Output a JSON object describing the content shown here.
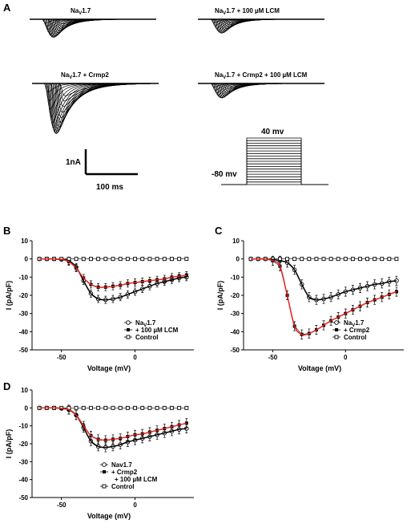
{
  "panel_A": {
    "letter": "A",
    "trace_titles": [
      {
        "id": "nav17",
        "base": "Na",
        "sub": "V",
        "rest": "1.7"
      },
      {
        "id": "nav17_lcm",
        "base": "Na",
        "sub": "V",
        "rest": "1.7 + 100 µM LCM"
      },
      {
        "id": "nav17_crmp2",
        "base": "Na",
        "sub": "V",
        "rest": "1.7 + Crmp2"
      },
      {
        "id": "nav17_crmp2_lcm",
        "base": "Na",
        "sub": "V",
        "rest": "1.7 + Crmp2 + 100 µM LCM"
      }
    ],
    "scale_bar": {
      "current": "1nA",
      "time": "100 ms"
    },
    "protocol": {
      "top_label": "40 mv",
      "holding_label": "-80 mv",
      "steps": 19
    }
  },
  "chart_data": [
    {
      "panel": "B",
      "type": "line",
      "xlabel": "Voltage (mV)",
      "ylabel": "I (pA/pF)",
      "xlim": [
        -70,
        40
      ],
      "ylim": [
        -50,
        10
      ],
      "xticks": [
        -50,
        0
      ],
      "yticks": [
        10,
        0,
        -10,
        -20,
        -30,
        -40,
        -50
      ],
      "legend_position": "bottom-right",
      "x": [
        -65,
        -60,
        -55,
        -50,
        -45,
        -40,
        -35,
        -30,
        -25,
        -20,
        -15,
        -10,
        -5,
        0,
        5,
        10,
        15,
        20,
        25,
        30,
        35
      ],
      "series": [
        {
          "name": "NaV1.7",
          "legend": {
            "base": "Na",
            "sub": "V",
            "rest": "1.7"
          },
          "marker": "open-circle",
          "color": "#000000",
          "values": [
            0,
            0,
            0,
            -0.3,
            -1,
            -4.5,
            -12,
            -19,
            -22,
            -22.5,
            -22,
            -21,
            -19.5,
            -18,
            -16.5,
            -15,
            -13.5,
            -12.5,
            -11.5,
            -10.5,
            -10
          ]
        },
        {
          "name": "+ 100 µM LCM",
          "legend": {
            "base": "+ 100 µM LCM",
            "sub": "",
            "rest": ""
          },
          "marker": "filled-square",
          "color": "#000000",
          "values": [
            0,
            0,
            0,
            -0.3,
            -1.5,
            -5,
            -10.5,
            -14,
            -15.5,
            -15.5,
            -15,
            -14.5,
            -13.5,
            -13,
            -12.5,
            -12,
            -11.5,
            -11,
            -10,
            -9.5,
            -9
          ]
        },
        {
          "name": "Control",
          "legend": {
            "base": "Control",
            "sub": "",
            "rest": ""
          },
          "marker": "open-square",
          "color": "#000000",
          "values": [
            0,
            0,
            0,
            0,
            0,
            0,
            0,
            0,
            0,
            0,
            0,
            0,
            0,
            0,
            0,
            0,
            0,
            0,
            0,
            0,
            0
          ]
        }
      ],
      "fits": [
        {
          "of": "NaV1.7",
          "color": "#000000"
        },
        {
          "of": "+ 100 µM LCM",
          "color": "#e8231e"
        }
      ],
      "error_bar": 2
    },
    {
      "panel": "C",
      "type": "line",
      "xlabel": "Voltage (mV)",
      "ylabel": "I (pA/pF)",
      "xlim": [
        -70,
        40
      ],
      "ylim": [
        -50,
        10
      ],
      "xticks": [
        -50,
        0
      ],
      "yticks": [
        10,
        0,
        -10,
        -20,
        -30,
        -40,
        -50
      ],
      "legend_position": "bottom-right",
      "x": [
        -65,
        -60,
        -55,
        -50,
        -45,
        -40,
        -35,
        -30,
        -25,
        -20,
        -15,
        -10,
        -5,
        0,
        5,
        10,
        15,
        20,
        25,
        30,
        35
      ],
      "series": [
        {
          "name": "NaV1.7",
          "legend": {
            "base": "Na",
            "sub": "V",
            "rest": "1.7"
          },
          "marker": "open-circle",
          "color": "#000000",
          "values": [
            0,
            0,
            0,
            -0.3,
            -1,
            -2,
            -6,
            -14,
            -21,
            -22.5,
            -22,
            -21,
            -19.5,
            -18,
            -17,
            -16,
            -15,
            -14,
            -13.5,
            -12.5,
            -12
          ]
        },
        {
          "name": "+ Crmp2",
          "legend": {
            "base": "+ Crmp2",
            "sub": "",
            "rest": ""
          },
          "marker": "filled-square",
          "color": "#000000",
          "values": [
            0,
            0,
            0,
            -1,
            -4,
            -20,
            -37,
            -41.5,
            -41,
            -39,
            -36.5,
            -34,
            -32,
            -30,
            -28,
            -26,
            -24,
            -22.5,
            -21,
            -19.5,
            -18
          ]
        },
        {
          "name": "Control",
          "legend": {
            "base": "Control",
            "sub": "",
            "rest": ""
          },
          "marker": "open-square",
          "color": "#000000",
          "values": [
            0,
            0,
            0,
            0,
            0,
            0,
            0,
            0,
            0,
            0,
            0,
            0,
            0,
            0,
            0,
            0,
            0,
            0,
            0,
            0,
            0
          ]
        }
      ],
      "fits": [
        {
          "of": "NaV1.7",
          "color": "#000000"
        },
        {
          "of": "+ Crmp2",
          "color": "#e8231e"
        }
      ],
      "error_bar": 2.5
    },
    {
      "panel": "D",
      "type": "line",
      "xlabel": "Voltage (mV)",
      "ylabel": "I (pA/pF)",
      "xlim": [
        -70,
        40
      ],
      "ylim": [
        -50,
        10
      ],
      "xticks": [
        -50,
        0
      ],
      "yticks": [
        10,
        0,
        -10,
        -20,
        -30,
        -40,
        -50
      ],
      "legend_position": "bottom-center",
      "x": [
        -65,
        -60,
        -55,
        -50,
        -45,
        -40,
        -35,
        -30,
        -25,
        -20,
        -15,
        -10,
        -5,
        0,
        5,
        10,
        15,
        20,
        25,
        30,
        35
      ],
      "series": [
        {
          "name": "Nav1.7",
          "legend": {
            "base": "Nav1.7",
            "sub": "",
            "rest": ""
          },
          "marker": "open-circle",
          "color": "#000000",
          "values": [
            0,
            0,
            0,
            -0.3,
            -1,
            -4,
            -11,
            -18.5,
            -21.5,
            -22,
            -21.5,
            -20.5,
            -19,
            -18,
            -17,
            -16,
            -15,
            -14,
            -13,
            -12,
            -11.5
          ]
        },
        {
          "name": "+ Crmp2 + 100 µM LCM",
          "legend": {
            "base": "+ Crmp2",
            "sub": "",
            "rest": "",
            "line2": "+ 100 µM LCM"
          },
          "marker": "filled-square",
          "color": "#000000",
          "values": [
            0,
            0,
            0,
            -0.3,
            -1,
            -4,
            -10,
            -15.5,
            -17.5,
            -18,
            -17.5,
            -17,
            -16,
            -15,
            -14.5,
            -13.5,
            -12.5,
            -11.5,
            -10.5,
            -9.5,
            -8.5
          ]
        },
        {
          "name": "Control",
          "legend": {
            "base": "Control",
            "sub": "",
            "rest": ""
          },
          "marker": "open-square",
          "color": "#000000",
          "values": [
            0,
            0,
            0,
            0,
            0,
            0,
            0,
            0,
            0,
            0,
            0,
            0,
            0,
            0,
            0,
            0,
            0,
            0,
            0,
            0,
            0
          ]
        }
      ],
      "fits": [
        {
          "of": "Nav1.7",
          "color": "#000000"
        },
        {
          "of": "+ Crmp2 + 100 µM LCM",
          "color": "#e8231e"
        }
      ],
      "error_bar": 2.5
    }
  ]
}
